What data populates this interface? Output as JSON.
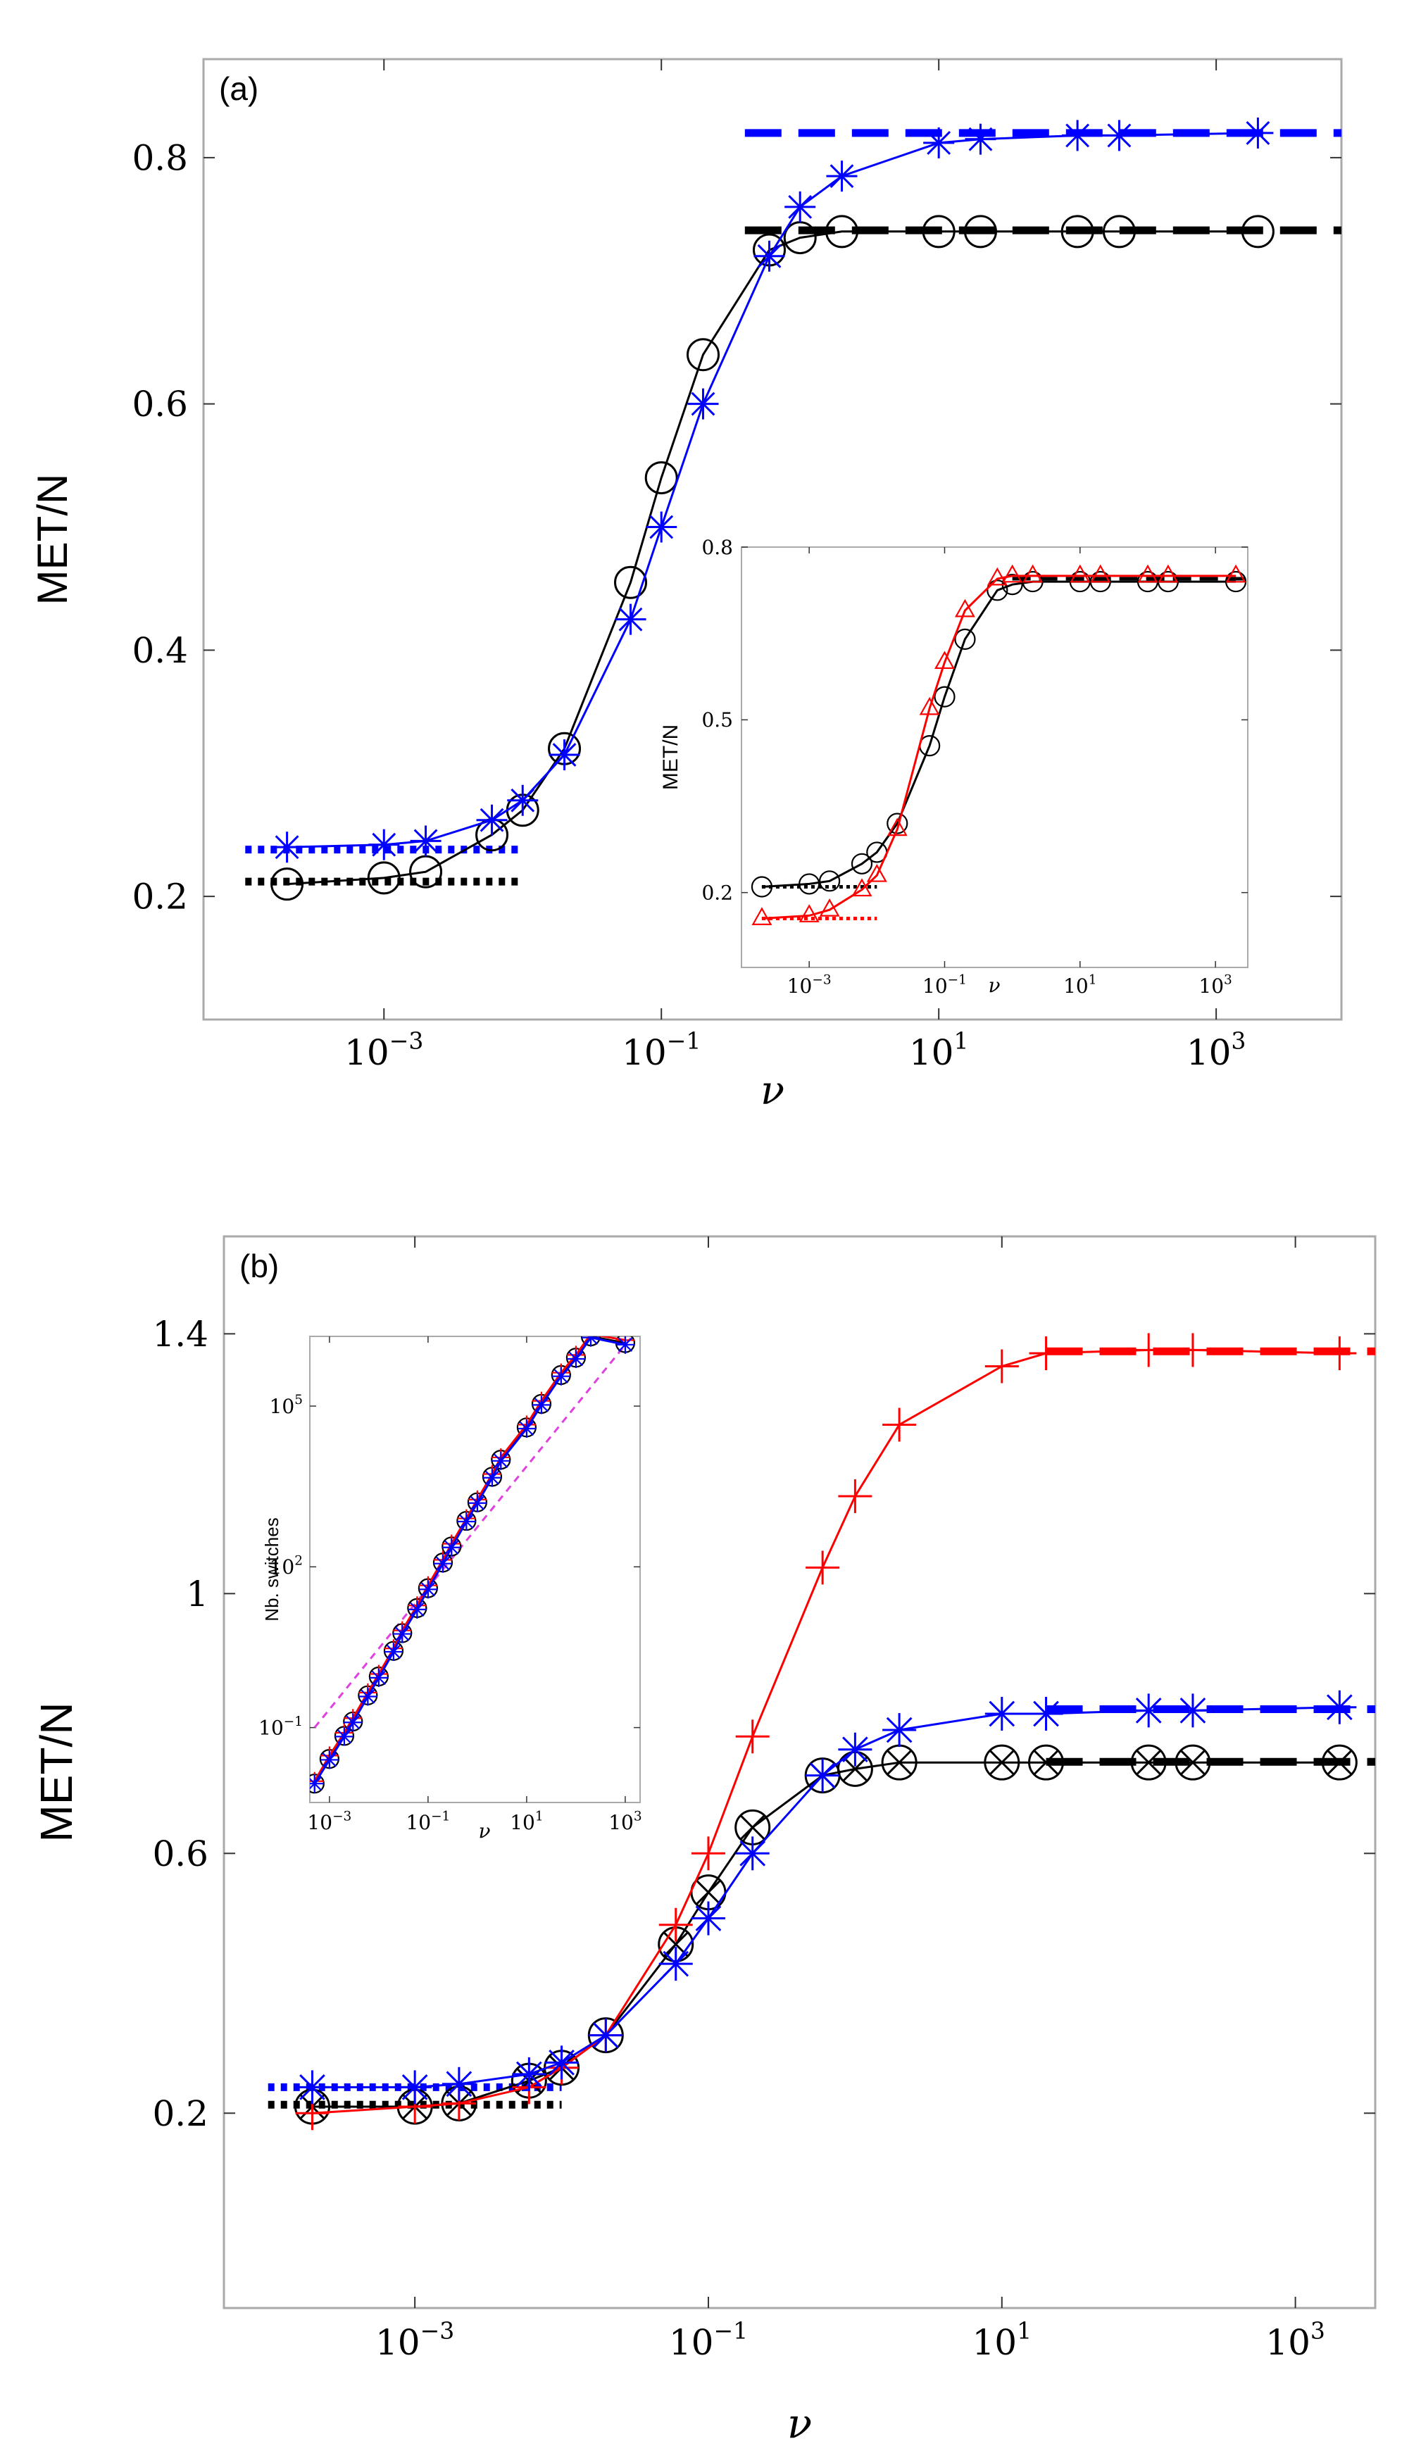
{
  "colors": {
    "black": "#000000",
    "blue": "#0000ff",
    "red": "#ff0000",
    "magenta": "#e040e0",
    "frame": "#aaaaaa"
  },
  "chart_data": [
    {
      "id": "a",
      "type": "line",
      "panel_label": "(a)",
      "xscale": "log",
      "xlim": [
        5e-05,
        8000
      ],
      "ylim": [
        0.1,
        0.88
      ],
      "xlabel": "ν",
      "ylabel": "MET/N",
      "x_ticks": [
        0.001,
        0.1,
        10,
        1000
      ],
      "x_tick_labels": [
        {
          "base": "10",
          "exp": "−3"
        },
        {
          "base": "10",
          "exp": "−1"
        },
        {
          "base": "10",
          "exp": "1"
        },
        {
          "base": "10",
          "exp": "3"
        }
      ],
      "y_ticks": [
        0.2,
        0.4,
        0.6,
        0.8
      ],
      "y_tick_labels": [
        "0.2",
        "0.4",
        "0.6",
        "0.8"
      ],
      "series": [
        {
          "name": "black circles",
          "color": "black",
          "marker": "circle",
          "x": [
            0.0002,
            0.001,
            0.002,
            0.006,
            0.01,
            0.02,
            0.06,
            0.1,
            0.2,
            0.6,
            1,
            2,
            10,
            20,
            100,
            200,
            2000
          ],
          "y": [
            0.21,
            0.215,
            0.22,
            0.25,
            0.27,
            0.32,
            0.455,
            0.54,
            0.64,
            0.725,
            0.735,
            0.74,
            0.74,
            0.74,
            0.74,
            0.74,
            0.74
          ]
        },
        {
          "name": "blue stars",
          "color": "blue",
          "marker": "star",
          "x": [
            0.0002,
            0.001,
            0.002,
            0.006,
            0.01,
            0.02,
            0.06,
            0.1,
            0.2,
            0.6,
            1,
            2,
            10,
            20,
            100,
            200,
            2000
          ],
          "y": [
            0.24,
            0.242,
            0.245,
            0.262,
            0.278,
            0.315,
            0.425,
            0.5,
            0.6,
            0.72,
            0.76,
            0.785,
            0.812,
            0.815,
            0.818,
            0.818,
            0.82
          ]
        }
      ],
      "reference_lines": [
        {
          "style": "dotted",
          "color": "blue",
          "y": 0.238,
          "x_range": [
            0.0001,
            0.01
          ]
        },
        {
          "style": "dotted",
          "color": "black",
          "y": 0.212,
          "x_range": [
            0.0001,
            0.01
          ]
        },
        {
          "style": "dashed",
          "color": "blue",
          "y": 0.82,
          "x_range": [
            0.4,
            8000
          ]
        },
        {
          "style": "dashed",
          "color": "black",
          "y": 0.741,
          "x_range": [
            0.4,
            8000
          ]
        }
      ],
      "inset": {
        "type": "line",
        "xscale": "log",
        "xlim": [
          0.0001,
          3000
        ],
        "ylim": [
          0.07,
          0.8
        ],
        "xlabel": "ν",
        "ylabel": "MET/N",
        "x_ticks": [
          0.001,
          0.1,
          10,
          1000
        ],
        "x_tick_labels": [
          {
            "base": "10",
            "exp": "−3"
          },
          {
            "base": "10",
            "exp": "−1"
          },
          {
            "base": "10",
            "exp": "1"
          },
          {
            "base": "10",
            "exp": "3"
          }
        ],
        "y_ticks": [
          0.2,
          0.5,
          0.8
        ],
        "y_tick_labels": [
          "0.2",
          "0.5",
          "0.8"
        ],
        "series": [
          {
            "name": "black circles",
            "color": "black",
            "marker": "circle",
            "x": [
              0.0002,
              0.001,
              0.002,
              0.006,
              0.01,
              0.02,
              0.06,
              0.1,
              0.2,
              0.6,
              1,
              2,
              10,
              20,
              100,
              200,
              2000
            ],
            "y": [
              0.21,
              0.215,
              0.22,
              0.25,
              0.27,
              0.32,
              0.455,
              0.54,
              0.64,
              0.725,
              0.735,
              0.74,
              0.74,
              0.74,
              0.74,
              0.74,
              0.74
            ]
          },
          {
            "name": "red triangles",
            "color": "red",
            "marker": "triangle",
            "x": [
              0.0002,
              0.001,
              0.002,
              0.006,
              0.01,
              0.02,
              0.06,
              0.1,
              0.2,
              0.6,
              1,
              2,
              10,
              20,
              100,
              200,
              2000
            ],
            "y": [
              0.155,
              0.16,
              0.17,
              0.205,
              0.23,
              0.31,
              0.52,
              0.6,
              0.69,
              0.745,
              0.75,
              0.75,
              0.75,
              0.75,
              0.75,
              0.75,
              0.75
            ]
          }
        ],
        "reference_lines": [
          {
            "style": "dotted",
            "color": "black",
            "y": 0.21,
            "x_range": [
              0.0002,
              0.01
            ]
          },
          {
            "style": "dotted",
            "color": "red",
            "y": 0.155,
            "x_range": [
              0.0002,
              0.01
            ]
          },
          {
            "style": "dashed",
            "color": "black",
            "y": 0.745,
            "x_range": [
              1,
              3000
            ]
          }
        ]
      }
    },
    {
      "id": "b",
      "type": "line",
      "panel_label": "(b)",
      "xscale": "log",
      "xlim": [
        5e-05,
        3500
      ],
      "ylim": [
        -0.1,
        1.55
      ],
      "xlabel": "ν",
      "ylabel": "MET/N",
      "x_ticks": [
        0.001,
        0.1,
        10,
        1000
      ],
      "x_tick_labels": [
        {
          "base": "10",
          "exp": "−3"
        },
        {
          "base": "10",
          "exp": "−1"
        },
        {
          "base": "10",
          "exp": "1"
        },
        {
          "base": "10",
          "exp": "3"
        }
      ],
      "y_ticks": [
        0.2,
        0.6,
        1.0,
        1.4
      ],
      "y_tick_labels": [
        "0.2",
        "0.6",
        "1",
        "1.4"
      ],
      "series": [
        {
          "name": "black circles",
          "color": "black",
          "marker": "circle-x",
          "x": [
            0.0002,
            0.001,
            0.002,
            0.006,
            0.01,
            0.02,
            0.06,
            0.1,
            0.2,
            0.6,
            1,
            2,
            10,
            20,
            100,
            200,
            2000
          ],
          "y": [
            0.21,
            0.21,
            0.215,
            0.25,
            0.27,
            0.32,
            0.46,
            0.54,
            0.64,
            0.72,
            0.73,
            0.74,
            0.74,
            0.74,
            0.74,
            0.74,
            0.74
          ]
        },
        {
          "name": "red plus",
          "color": "red",
          "marker": "plus",
          "x": [
            0.0002,
            0.001,
            0.002,
            0.006,
            0.01,
            0.02,
            0.06,
            0.1,
            0.2,
            0.6,
            1,
            2,
            10,
            20,
            100,
            200,
            2000
          ],
          "y": [
            0.2,
            0.21,
            0.215,
            0.24,
            0.27,
            0.32,
            0.49,
            0.6,
            0.78,
            1.04,
            1.15,
            1.26,
            1.35,
            1.37,
            1.375,
            1.375,
            1.37
          ]
        },
        {
          "name": "blue stars",
          "color": "blue",
          "marker": "star",
          "x": [
            0.0002,
            0.001,
            0.002,
            0.006,
            0.01,
            0.02,
            0.06,
            0.1,
            0.2,
            0.6,
            1,
            2,
            10,
            20,
            100,
            200,
            2000
          ],
          "y": [
            0.24,
            0.24,
            0.245,
            0.26,
            0.278,
            0.32,
            0.43,
            0.5,
            0.6,
            0.72,
            0.76,
            0.79,
            0.815,
            0.815,
            0.82,
            0.82,
            0.825
          ]
        }
      ],
      "reference_lines": [
        {
          "style": "dotted",
          "color": "blue",
          "y": 0.24,
          "x_range": [
            0.0001,
            0.01
          ]
        },
        {
          "style": "dotted",
          "color": "black",
          "y": 0.213,
          "x_range": [
            0.0001,
            0.01
          ]
        },
        {
          "style": "dashed",
          "color": "red",
          "y": 1.373,
          "x_range": [
            20,
            3500
          ]
        },
        {
          "style": "dashed",
          "color": "blue",
          "y": 0.822,
          "x_range": [
            20,
            3500
          ]
        },
        {
          "style": "dashed",
          "color": "black",
          "y": 0.741,
          "x_range": [
            20,
            3500
          ]
        }
      ],
      "inset": {
        "type": "line",
        "xscale": "log",
        "yscale": "log",
        "xlim": [
          0.0004,
          2000
        ],
        "ylim": [
          0.004,
          2000000
        ],
        "xlabel": "ν",
        "ylabel": "Nb. switches",
        "x_ticks": [
          0.001,
          0.1,
          10,
          1000
        ],
        "x_tick_labels": [
          {
            "base": "10",
            "exp": "−3"
          },
          {
            "base": "10",
            "exp": "−1"
          },
          {
            "base": "10",
            "exp": "1"
          },
          {
            "base": "10",
            "exp": "3"
          }
        ],
        "y_ticks": [
          0.1,
          100,
          100000
        ],
        "y_tick_labels": [
          {
            "base": "10",
            "exp": "−1"
          },
          {
            "base": "10",
            "exp": "2"
          },
          {
            "base": "10",
            "exp": "5"
          }
        ],
        "series": [
          {
            "name": "black circles",
            "color": "black",
            "marker": "circle",
            "x": [
              0.0005,
              0.001,
              0.002,
              0.003,
              0.006,
              0.01,
              0.02,
              0.03,
              0.06,
              0.1,
              0.2,
              0.3,
              0.6,
              1,
              2,
              3,
              10,
              20,
              50,
              100,
              200,
              1000
            ],
            "y": [
              0.009,
              0.026,
              0.07,
              0.13,
              0.4,
              0.9,
              2.7,
              5.8,
              17,
              40,
              120,
              240,
              720,
              1600,
              4800,
              10000,
              40000,
              110000,
              380000,
              800000,
              2000000,
              1500000
            ]
          },
          {
            "name": "red plus",
            "color": "red",
            "marker": "plus",
            "x": [
              0.0005,
              0.001,
              0.002,
              0.003,
              0.006,
              0.01,
              0.02,
              0.03,
              0.06,
              0.1,
              0.2,
              0.3,
              0.6,
              1,
              2,
              3,
              10,
              20,
              50,
              100,
              200,
              1000
            ],
            "y": [
              0.01,
              0.03,
              0.08,
              0.15,
              0.45,
              1.0,
              3.0,
              6.5,
              19,
              45,
              135,
              270,
              800,
              1800,
              5400,
              11000,
              45000,
              125000,
              420000,
              900000,
              2200000,
              1700000
            ]
          },
          {
            "name": "blue stars",
            "color": "blue",
            "marker": "star",
            "x": [
              0.0005,
              0.001,
              0.002,
              0.003,
              0.006,
              0.01,
              0.02,
              0.03,
              0.06,
              0.1,
              0.2,
              0.3,
              0.6,
              1,
              2,
              3,
              10,
              20,
              50,
              100,
              200,
              1000
            ],
            "y": [
              0.009,
              0.025,
              0.068,
              0.125,
              0.38,
              0.85,
              2.6,
              5.6,
              16,
              38,
              115,
              230,
              700,
              1550,
              4600,
              9500,
              38000,
              105000,
              360000,
              760000,
              1900000,
              1400000
            ]
          }
        ],
        "reference_lines": [
          {
            "style": "dashed",
            "color": "magenta",
            "points": [
              [
                0.0005,
                0.1
              ],
              [
                1500,
                2200000
              ]
            ]
          }
        ]
      }
    }
  ]
}
